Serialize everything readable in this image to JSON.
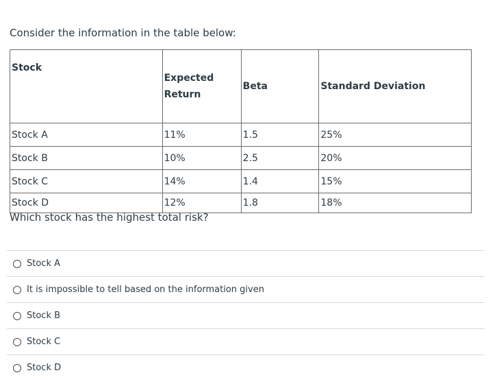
{
  "intro_text": "Consider the information in the table below:",
  "table": {
    "headers": [
      "Stock",
      "Expected Return",
      "Beta",
      "Standard Deviation"
    ],
    "rows": [
      [
        "Stock A",
        "11%",
        "1.5",
        "25%"
      ],
      [
        "Stock B",
        "10%",
        "2.5",
        "20%"
      ],
      [
        "Stock C",
        "14%",
        "1.4",
        "15%"
      ],
      [
        "Stock D",
        "12%",
        "1.8",
        "18%"
      ]
    ]
  },
  "question_text": "Which stock has the highest total risk?",
  "answers": [
    {
      "label": "Stock A"
    },
    {
      "label": "It is impossible to tell based on the information given"
    },
    {
      "label": "Stock B"
    },
    {
      "label": "Stock C"
    },
    {
      "label": "Stock D"
    }
  ]
}
